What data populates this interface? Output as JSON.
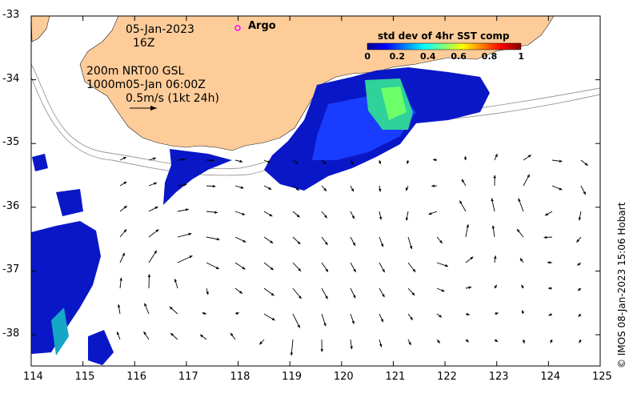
{
  "map": {
    "date": "05-Jan-2023",
    "hour": "16Z",
    "argo_label": "Argo",
    "current_lines": [
      "200m  NRT00 GSL",
      "1000m05-Jan 06:00Z",
      "0.5m/s (1kt 24h)"
    ],
    "colorbar_title": "std dev of 4hr SST comp",
    "colorbar_ticks": [
      "0",
      "0.2",
      "0.4",
      "0.6",
      "0.8",
      "1"
    ],
    "colorbar_range": [
      0,
      1
    ],
    "lon_ticks": [
      "114",
      "115",
      "116",
      "117",
      "118",
      "119",
      "120",
      "121",
      "122",
      "123",
      "124",
      "125"
    ],
    "lat_ticks": [
      "-33",
      "-34",
      "-35",
      "-36",
      "-37",
      "-38"
    ],
    "lon_range": [
      114,
      125
    ],
    "lat_range": [
      -38.5,
      -33
    ],
    "credit": "© IMOS 08-Jan-2023 15:06 Hobart",
    "colors": {
      "land": "#fdcc99",
      "argo_marker": "#ff00ff",
      "arrows": "#000000",
      "colormap": [
        "#00008f",
        "#0000ff",
        "#0080ff",
        "#00ffff",
        "#80ff80",
        "#ffff00",
        "#ff8000",
        "#ff0000",
        "#800000"
      ]
    }
  }
}
